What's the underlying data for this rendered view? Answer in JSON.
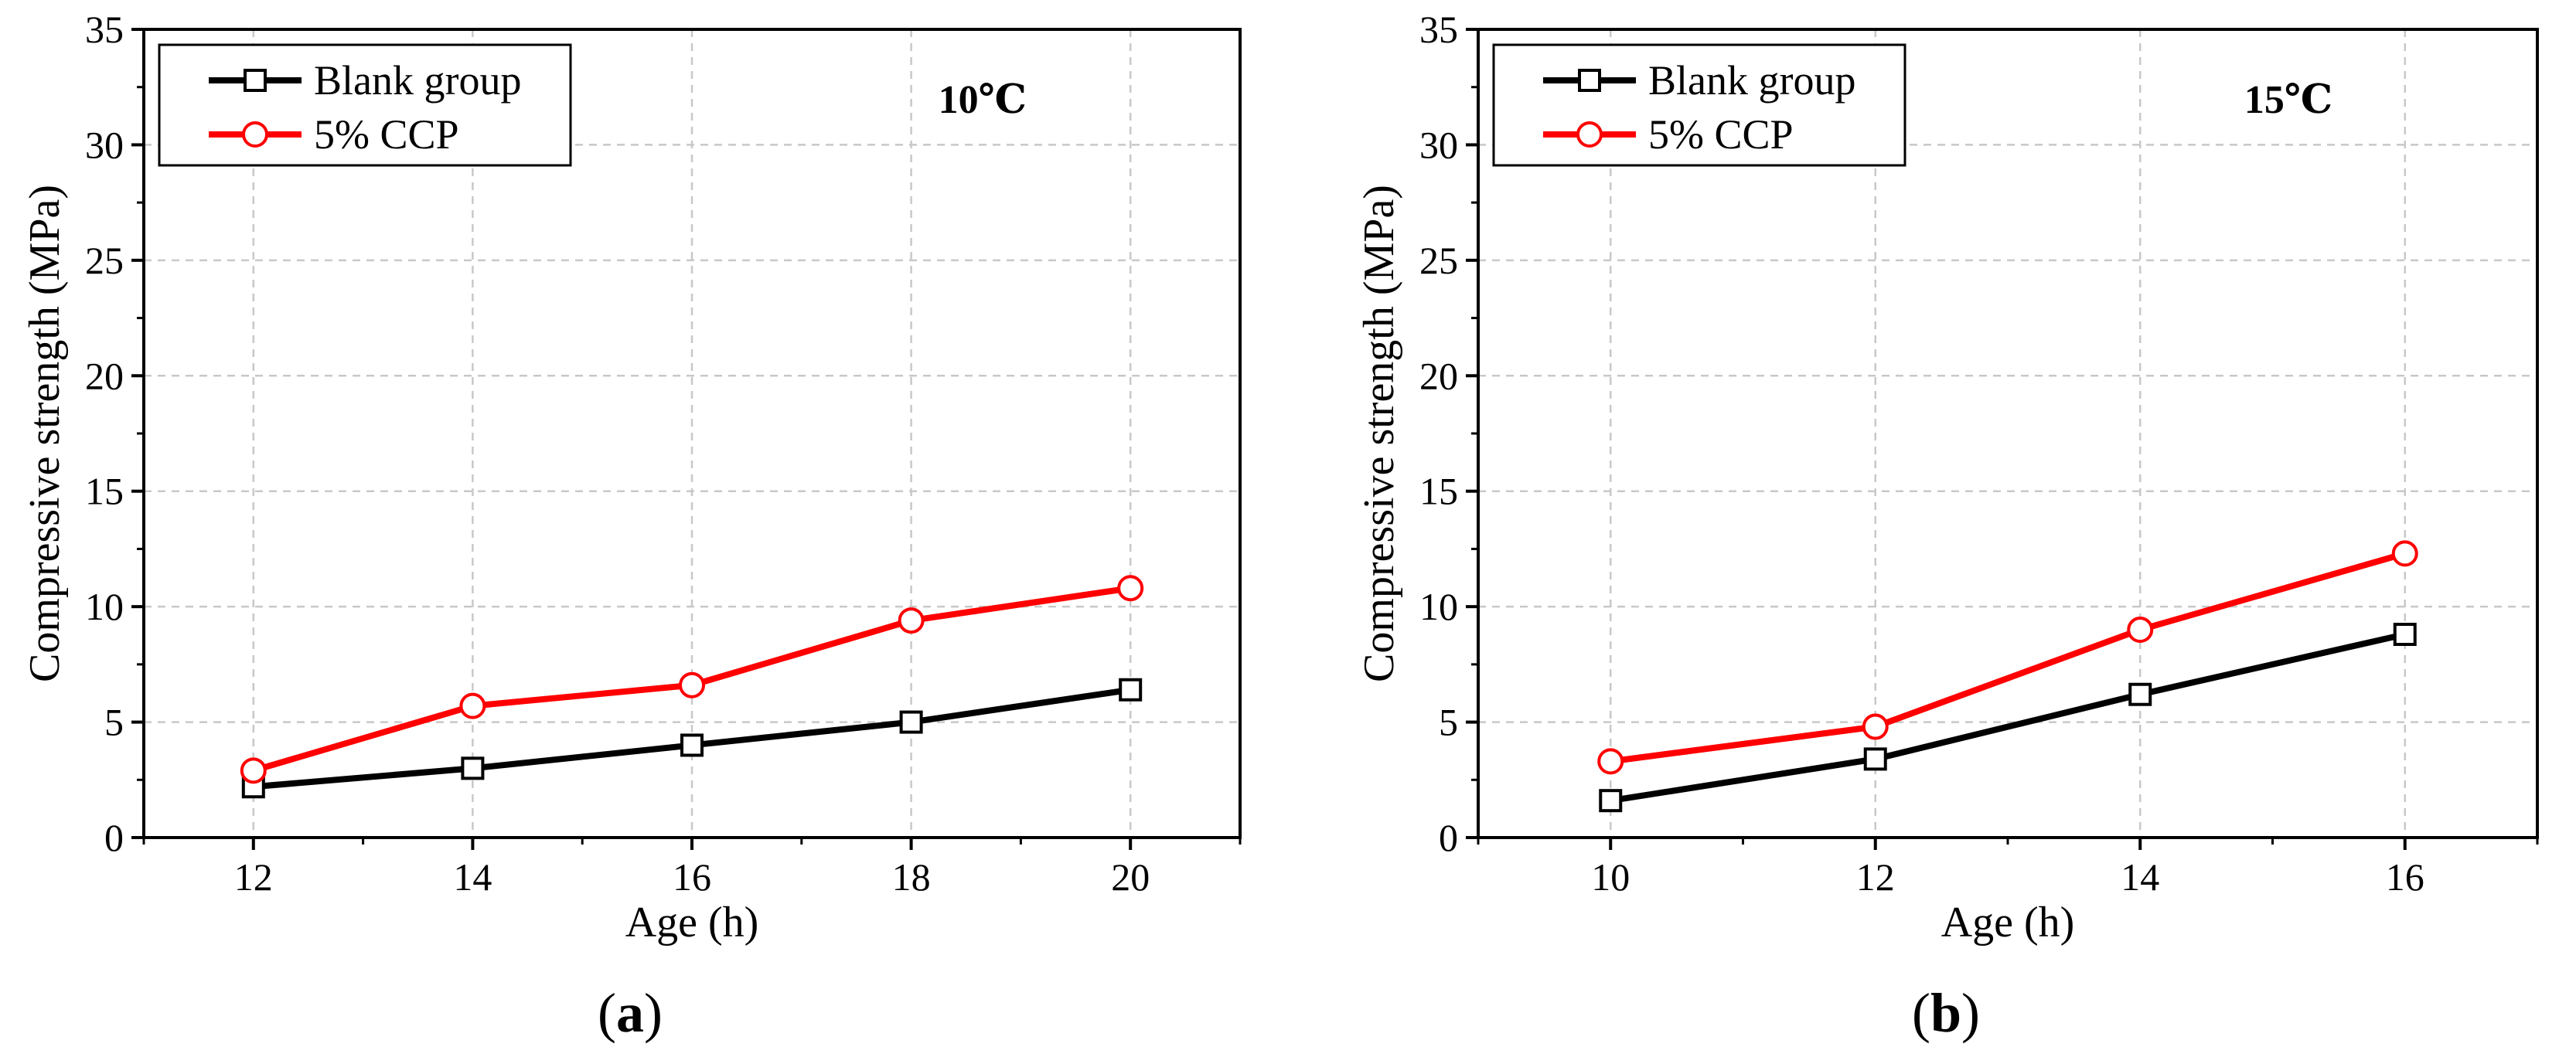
{
  "chart_data": [
    {
      "type": "line",
      "panel_label": "a",
      "annotation": "10℃",
      "xlabel": "Age (h)",
      "ylabel": "Compressive strength (MPa)",
      "xlim": [
        11,
        21
      ],
      "ylim": [
        0,
        35
      ],
      "xticks": [
        12,
        14,
        16,
        18,
        20
      ],
      "yticks": [
        0,
        5,
        10,
        15,
        20,
        25,
        30,
        35
      ],
      "grid": true,
      "legend_position": "top-left",
      "x": [
        12,
        14,
        16,
        18,
        20
      ],
      "series": [
        {
          "name": "Blank group",
          "color": "#000000",
          "marker": "square",
          "values": [
            2.2,
            3.0,
            4.0,
            5.0,
            6.4
          ]
        },
        {
          "name": "5% CCP",
          "color": "#ff0000",
          "marker": "circle",
          "values": [
            2.9,
            5.7,
            6.6,
            9.4,
            10.8
          ]
        }
      ]
    },
    {
      "type": "line",
      "panel_label": "b",
      "annotation": "15℃",
      "xlabel": "Age (h)",
      "ylabel": "Compressive strength (MPa)",
      "xlim": [
        9,
        17
      ],
      "ylim": [
        0,
        35
      ],
      "xticks": [
        10,
        12,
        14,
        16
      ],
      "yticks": [
        0,
        5,
        10,
        15,
        20,
        25,
        30,
        35
      ],
      "grid": true,
      "legend_position": "top-left",
      "x": [
        10,
        12,
        14,
        16
      ],
      "series": [
        {
          "name": "Blank group",
          "color": "#000000",
          "marker": "square",
          "values": [
            1.6,
            3.4,
            6.2,
            8.8
          ]
        },
        {
          "name": "5% CCP",
          "color": "#ff0000",
          "marker": "circle",
          "values": [
            3.3,
            4.8,
            9.0,
            12.3
          ]
        }
      ]
    }
  ]
}
